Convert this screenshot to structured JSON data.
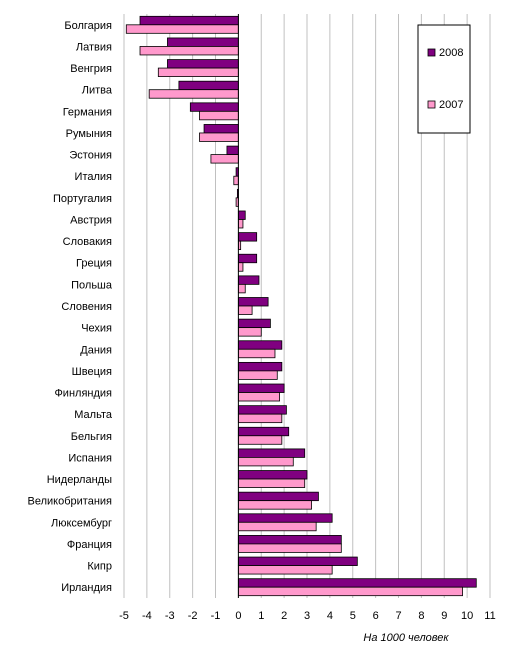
{
  "chart_data": {
    "type": "bar",
    "orientation": "horizontal",
    "categories": [
      "Болгария",
      "Латвия",
      "Венгрия",
      "Литва",
      "Германия",
      "Румыния",
      "Эстония",
      "Италия",
      "Португалия",
      "Австрия",
      "Словакия",
      "Греция",
      "Польша",
      "Словения",
      "Чехия",
      "Дания",
      "Швеция",
      "Финляндия",
      "Мальта",
      "Бельгия",
      "Испания",
      "Нидерланды",
      "Великобритания",
      "Люксембург",
      "Франция",
      "Кипр",
      "Ирландия"
    ],
    "series": [
      {
        "name": "2008",
        "color": "#800080",
        "values": [
          -4.3,
          -3.1,
          -3.1,
          -2.6,
          -2.1,
          -1.5,
          -0.5,
          -0.1,
          0,
          0.3,
          0.8,
          0.8,
          0.9,
          1.3,
          1.4,
          1.9,
          1.9,
          2.0,
          2.1,
          2.2,
          2.9,
          3.0,
          3.5,
          4.1,
          4.5,
          5.2,
          10.4
        ]
      },
      {
        "name": "2007",
        "color": "#ff99cc",
        "values": [
          -4.9,
          -4.3,
          -3.5,
          -3.9,
          -1.7,
          -1.7,
          -1.2,
          -0.2,
          -0.1,
          0.2,
          0.1,
          0.2,
          0.3,
          0.6,
          1.0,
          1.6,
          1.7,
          1.8,
          1.9,
          1.9,
          2.4,
          2.9,
          3.2,
          3.4,
          4.5,
          4.1,
          9.8
        ]
      }
    ],
    "xlim": [
      -5,
      11
    ],
    "xticks": [
      "-5",
      "-4",
      "-3",
      "-2",
      "-1",
      "0",
      "1",
      "2",
      "3",
      "4",
      "5",
      "6",
      "7",
      "8",
      "9",
      "10",
      "11"
    ],
    "xlabel": "На 1000 человек",
    "grid": "vertical",
    "legend": "top-right"
  }
}
